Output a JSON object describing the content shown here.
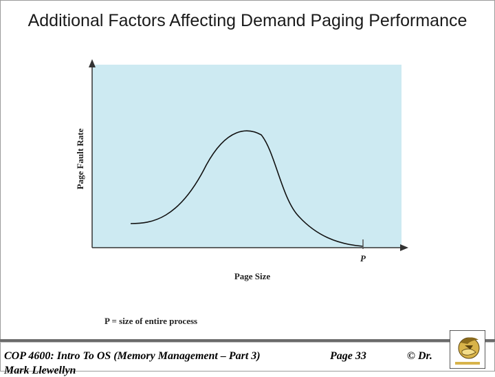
{
  "slide": {
    "title": "Additional Factors Affecting Demand Paging Performance"
  },
  "figure": {
    "y_axis_label": "Page Fault Rate",
    "x_axis_label": "Page Size",
    "p_marker_label": "P",
    "caption": "P = size of entire process",
    "colors": {
      "plot_bg": "#cdeaf2",
      "axis": "#333333",
      "curve": "#111111"
    }
  },
  "footer": {
    "course": "COP 4600: Intro To OS  (Memory Management – Part 3)",
    "page": "Page 33",
    "copyright": "© Dr.",
    "author": "Mark Llewellyn",
    "logo_icon": "university-pegasus-logo"
  }
}
